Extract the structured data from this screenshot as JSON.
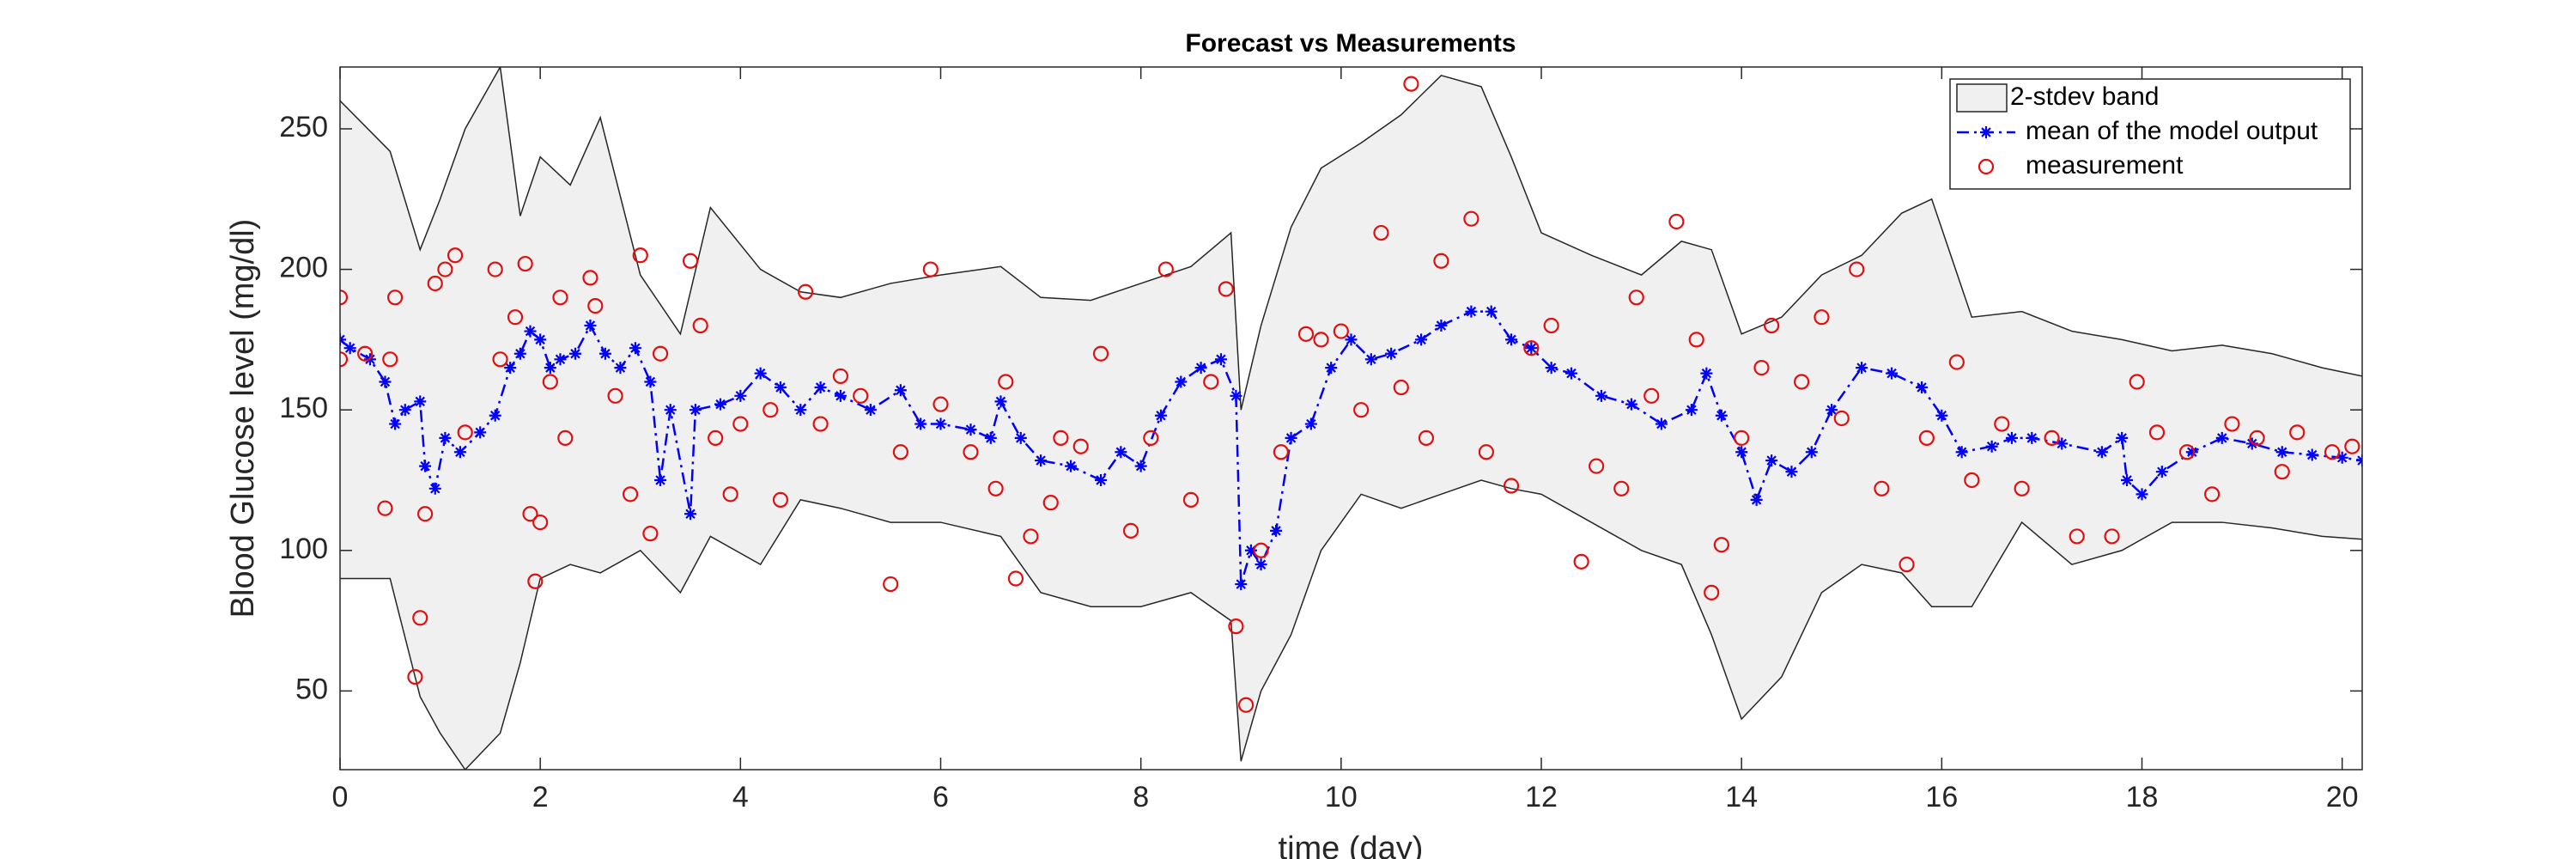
{
  "chart_data": {
    "type": "line",
    "title": "Forecast vs Measurements",
    "xlabel": "time (day)",
    "ylabel": "Blood Glucose level (mg/dl)",
    "xlim": [
      0,
      20.2
    ],
    "ylim": [
      22,
      272
    ],
    "xticks": [
      0,
      2,
      4,
      6,
      8,
      10,
      12,
      14,
      16,
      18,
      20
    ],
    "yticks": [
      50,
      100,
      150,
      200,
      250
    ],
    "legend": "upper right",
    "series": [
      {
        "type": "band",
        "name": "2-stdev band",
        "color": "#f0f0f0",
        "edge_color": "#262626",
        "x": [
          0,
          0.5,
          0.8,
          1.0,
          1.25,
          1.6,
          1.8,
          2.0,
          2.3,
          2.6,
          3.0,
          3.4,
          3.7,
          4.2,
          4.6,
          5.0,
          5.5,
          6.0,
          6.6,
          7.0,
          7.5,
          8.0,
          8.5,
          8.9,
          9.0,
          9.2,
          9.5,
          9.8,
          10.2,
          10.6,
          11.0,
          11.4,
          11.7,
          12.0,
          12.5,
          13.0,
          13.4,
          13.7,
          14.0,
          14.4,
          14.8,
          15.2,
          15.6,
          15.9,
          16.3,
          16.8,
          17.3,
          17.8,
          18.3,
          18.8,
          19.3,
          19.8,
          20.2
        ],
        "upper": [
          260,
          242,
          207,
          225,
          250,
          272,
          219,
          240,
          230,
          254,
          198,
          177,
          222,
          200,
          192,
          190,
          195,
          198,
          201,
          190,
          189,
          195,
          201,
          213,
          150,
          180,
          215,
          236,
          245,
          255,
          269,
          265,
          240,
          213,
          205,
          198,
          210,
          207,
          177,
          183,
          198,
          205,
          220,
          225,
          183,
          185,
          178,
          175,
          171,
          173,
          170,
          165,
          162
        ],
        "lower": [
          90,
          90,
          48,
          35,
          22,
          35,
          60,
          90,
          95,
          92,
          100,
          85,
          105,
          95,
          118,
          115,
          110,
          110,
          105,
          85,
          80,
          80,
          85,
          75,
          25,
          50,
          70,
          100,
          120,
          115,
          120,
          125,
          122,
          120,
          110,
          100,
          95,
          70,
          40,
          55,
          85,
          95,
          92,
          80,
          80,
          110,
          95,
          100,
          110,
          110,
          108,
          105,
          104
        ]
      },
      {
        "type": "line",
        "name": "mean of the model output",
        "color": "#0000ff",
        "line_style": "dash-dot",
        "marker": "*",
        "x": [
          0,
          0.1,
          0.3,
          0.45,
          0.55,
          0.65,
          0.8,
          0.85,
          0.95,
          1.05,
          1.2,
          1.4,
          1.55,
          1.7,
          1.8,
          1.9,
          2.0,
          2.1,
          2.2,
          2.35,
          2.5,
          2.65,
          2.8,
          2.95,
          3.1,
          3.2,
          3.3,
          3.5,
          3.55,
          3.8,
          4.0,
          4.2,
          4.4,
          4.6,
          4.8,
          5.0,
          5.3,
          5.6,
          5.8,
          6.0,
          6.3,
          6.5,
          6.6,
          6.8,
          7.0,
          7.3,
          7.6,
          7.8,
          8.0,
          8.2,
          8.4,
          8.6,
          8.8,
          8.95,
          9.0,
          9.1,
          9.2,
          9.35,
          9.5,
          9.7,
          9.9,
          10.1,
          10.3,
          10.5,
          10.8,
          11.0,
          11.3,
          11.5,
          11.7,
          11.9,
          12.1,
          12.3,
          12.6,
          12.9,
          13.2,
          13.5,
          13.65,
          13.8,
          14.0,
          14.15,
          14.3,
          14.5,
          14.7,
          14.9,
          15.2,
          15.5,
          15.8,
          16.0,
          16.2,
          16.5,
          16.7,
          16.9,
          17.2,
          17.6,
          17.8,
          17.85,
          18.0,
          18.2,
          18.5,
          18.8,
          19.1,
          19.4,
          19.7,
          20.0,
          20.2
        ],
        "values": [
          175,
          172,
          168,
          160,
          145,
          150,
          153,
          130,
          122,
          140,
          135,
          142,
          148,
          165,
          170,
          178,
          175,
          165,
          168,
          170,
          180,
          170,
          165,
          172,
          160,
          125,
          150,
          113,
          150,
          152,
          155,
          163,
          158,
          150,
          158,
          155,
          150,
          157,
          145,
          145,
          143,
          140,
          153,
          140,
          132,
          130,
          125,
          135,
          130,
          148,
          160,
          165,
          168,
          155,
          88,
          100,
          95,
          107,
          140,
          145,
          165,
          175,
          168,
          170,
          175,
          180,
          185,
          185,
          175,
          172,
          165,
          163,
          155,
          152,
          145,
          150,
          163,
          148,
          135,
          118,
          132,
          128,
          135,
          150,
          165,
          163,
          158,
          148,
          135,
          137,
          140,
          140,
          138,
          135,
          140,
          125,
          120,
          128,
          135,
          140,
          138,
          135,
          134,
          133,
          132
        ]
      },
      {
        "type": "scatter",
        "name": "measurement",
        "color": "#e01010",
        "marker": "o",
        "x": [
          0,
          0,
          0.25,
          0.45,
          0.5,
          0.55,
          0.75,
          0.8,
          0.85,
          0.95,
          1.05,
          1.15,
          1.25,
          1.55,
          1.6,
          1.75,
          1.85,
          1.9,
          1.95,
          2.0,
          2.1,
          2.2,
          2.25,
          2.5,
          2.55,
          2.75,
          2.9,
          3.0,
          3.1,
          3.2,
          3.5,
          3.6,
          3.75,
          3.9,
          4.0,
          4.3,
          4.4,
          4.65,
          4.8,
          5.0,
          5.2,
          5.5,
          5.6,
          5.9,
          6.0,
          6.3,
          6.55,
          6.65,
          6.75,
          6.9,
          7.1,
          7.2,
          7.4,
          7.6,
          7.9,
          8.1,
          8.25,
          8.5,
          8.7,
          8.85,
          8.95,
          9.05,
          9.2,
          9.4,
          9.65,
          9.8,
          10.0,
          10.2,
          10.4,
          10.6,
          10.7,
          10.85,
          11.0,
          11.3,
          11.45,
          11.7,
          11.9,
          12.1,
          12.4,
          12.55,
          12.8,
          12.95,
          13.1,
          13.35,
          13.55,
          13.7,
          13.8,
          14.0,
          14.2,
          14.3,
          14.6,
          14.8,
          15.0,
          15.15,
          15.4,
          15.65,
          15.85,
          16.15,
          16.3,
          16.6,
          16.8,
          17.1,
          17.35,
          17.7,
          17.95,
          18.15,
          18.45,
          18.7,
          18.9,
          19.15,
          19.4,
          19.55,
          19.9,
          20.1
        ],
        "values": [
          190,
          168,
          170,
          115,
          168,
          190,
          55,
          76,
          113,
          195,
          200,
          205,
          142,
          200,
          168,
          183,
          202,
          113,
          89,
          110,
          160,
          190,
          140,
          197,
          187,
          155,
          120,
          205,
          106,
          170,
          203,
          180,
          140,
          120,
          145,
          150,
          118,
          192,
          145,
          162,
          155,
          88,
          135,
          200,
          152,
          135,
          122,
          160,
          90,
          105,
          117,
          140,
          137,
          170,
          107,
          140,
          200,
          118,
          160,
          193,
          73,
          45,
          100,
          135,
          177,
          175,
          178,
          150,
          213,
          158,
          266,
          140,
          203,
          218,
          135,
          123,
          172,
          180,
          96,
          130,
          122,
          190,
          155,
          217,
          175,
          85,
          102,
          140,
          165,
          180,
          160,
          183,
          147,
          200,
          122,
          95,
          140,
          167,
          125,
          145,
          122,
          140,
          105,
          105,
          160,
          142,
          135,
          120,
          145,
          140,
          128,
          142,
          135,
          137
        ]
      }
    ]
  }
}
